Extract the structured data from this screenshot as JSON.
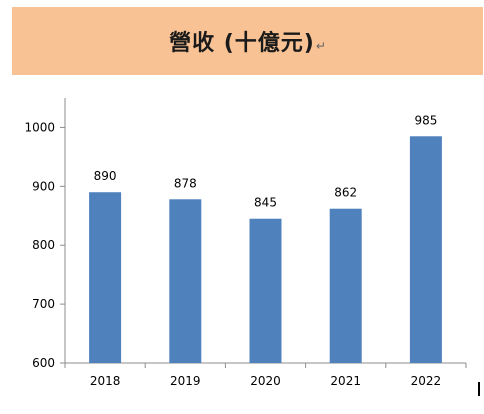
{
  "banner": {
    "title": "營收 (十億元)",
    "paragraph_mark": "↵",
    "background": "#f8c294"
  },
  "chart_data": {
    "type": "bar",
    "title": "營收 (十億元)",
    "categories": [
      "2018",
      "2019",
      "2020",
      "2021",
      "2022"
    ],
    "values": [
      890,
      878,
      845,
      862,
      985
    ],
    "ylim": [
      600,
      1050
    ],
    "yticks": [
      600,
      700,
      800,
      900,
      1000
    ],
    "grid": false,
    "legend": "none",
    "bar_color": "#4f81bd",
    "axis_color": "#8c8c8c"
  }
}
